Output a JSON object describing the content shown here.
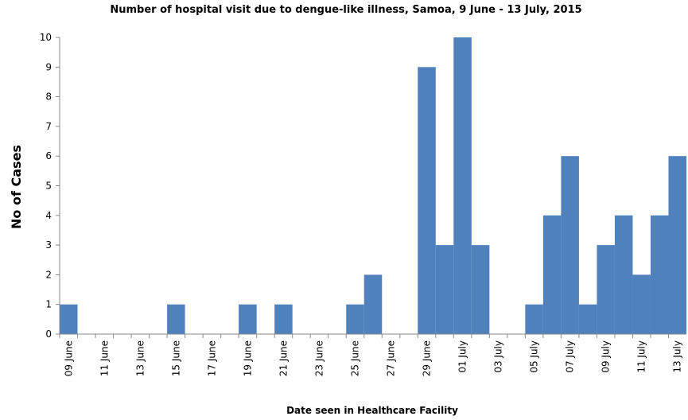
{
  "chart_data": {
    "type": "bar",
    "title": "Number of hospital visit due to dengue-like illness, Samoa, 9 June - 13 July, 2015",
    "x_label": "Date seen in Healthcare Facility",
    "y_label": "No of Cases",
    "categories": [
      "09 June",
      null,
      "11 June",
      null,
      "13 June",
      null,
      "15 June",
      null,
      "17 June",
      null,
      "19 June",
      null,
      "21 June",
      null,
      "23 June",
      null,
      "25 June",
      null,
      "27 June",
      null,
      "29 June",
      null,
      "01 July",
      null,
      "03 July",
      null,
      "05 July",
      null,
      "07 July",
      null,
      "09 July",
      null,
      "11 July",
      null,
      "13 July"
    ],
    "values": [
      1,
      0,
      0,
      0,
      0,
      0,
      1,
      0,
      0,
      0,
      1,
      0,
      1,
      0,
      0,
      0,
      1,
      2,
      0,
      0,
      9,
      3,
      10,
      3,
      0,
      0,
      1,
      4,
      6,
      1,
      3,
      4,
      2,
      4,
      6
    ],
    "color": "#4f81bd",
    "ylim": [
      0,
      10
    ],
    "yticks": [
      0,
      1,
      2,
      3,
      4,
      5,
      6,
      7,
      8,
      9,
      10
    ],
    "grid": false
  }
}
